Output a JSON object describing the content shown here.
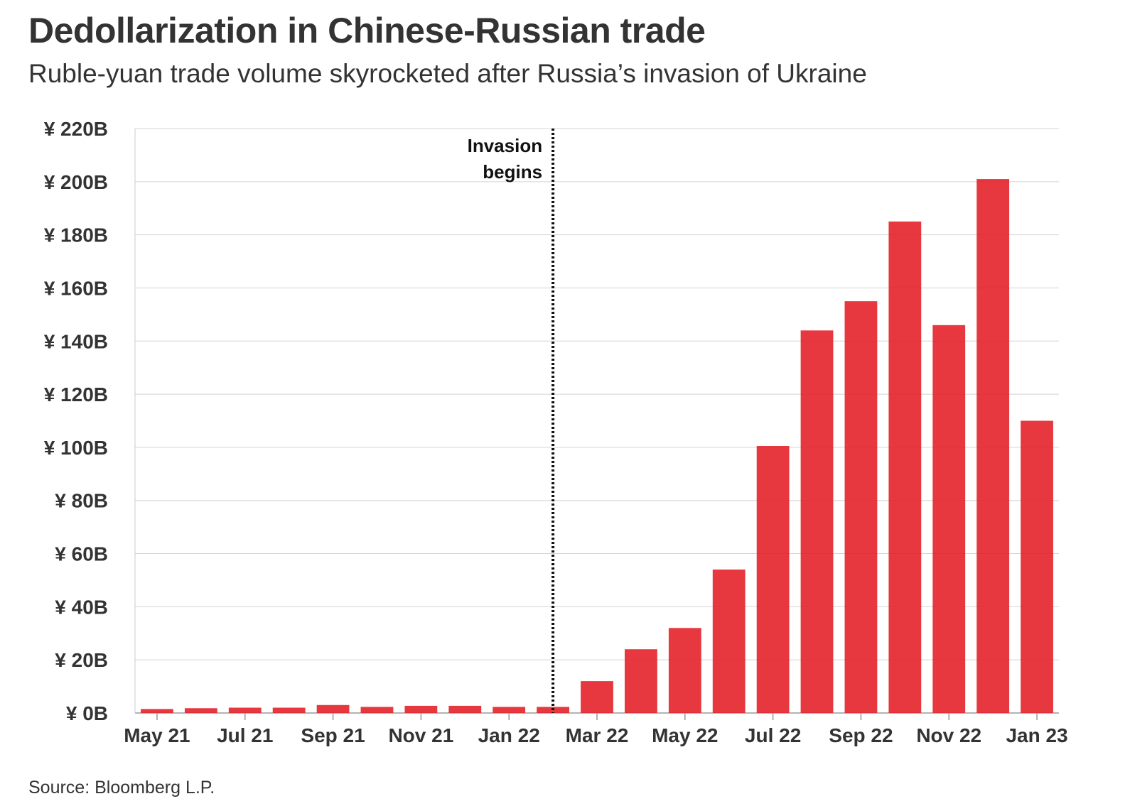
{
  "header": {
    "title": "Dedollarization in Chinese-Russian trade",
    "subtitle": "Ruble-yuan trade volume skyrocketed after Russia’s invasion of Ukraine"
  },
  "footer": {
    "source": "Source: Bloomberg L.P."
  },
  "chart_data": {
    "type": "bar",
    "title": "Dedollarization in Chinese-Russian trade",
    "subtitle": "Ruble-yuan trade volume skyrocketed after Russia’s invasion of Ukraine",
    "xlabel": "",
    "ylabel": "",
    "unit": "¥ B",
    "ylim": [
      0,
      220
    ],
    "yticks": [
      0,
      20,
      40,
      60,
      80,
      100,
      120,
      140,
      160,
      180,
      200,
      220
    ],
    "ytick_labels": [
      "¥ 0B",
      "¥ 20B",
      "¥ 40B",
      "¥ 60B",
      "¥ 80B",
      "¥ 100B",
      "¥ 120B",
      "¥ 140B",
      "¥ 160B",
      "¥ 180B",
      "¥ 200B",
      "¥ 220B"
    ],
    "categories": [
      "May 21",
      "Jun 21",
      "Jul 21",
      "Aug 21",
      "Sep 21",
      "Oct 21",
      "Nov 21",
      "Dec 21",
      "Jan 22",
      "Feb 22",
      "Mar 22",
      "Apr 22",
      "May 22",
      "Jun 22",
      "Jul 22",
      "Aug 22",
      "Sep 22",
      "Oct 22",
      "Nov 22",
      "Dec 22",
      "Jan 23"
    ],
    "x_tick_labels": [
      "May 21",
      "Jul 21",
      "Sep 21",
      "Nov 21",
      "Jan 22",
      "Mar 22",
      "May 22",
      "Jul 22",
      "Sep 22",
      "Nov 22",
      "Jan 23"
    ],
    "values": [
      1.5,
      1.8,
      2,
      2,
      3,
      2.3,
      2.7,
      2.7,
      2.3,
      2.3,
      12,
      24,
      32,
      54,
      100.5,
      144,
      155,
      185,
      146,
      201,
      110
    ],
    "bar_color": "#e21c23",
    "grid": true,
    "annotation": {
      "text_line1": "Invasion",
      "text_line2": "begins",
      "position": "Feb 22"
    }
  }
}
